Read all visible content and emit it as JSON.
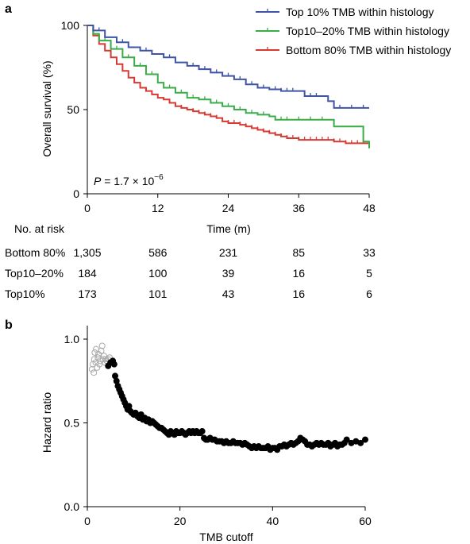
{
  "panels": {
    "a": "a",
    "b": "b"
  },
  "chart_data": [
    {
      "type": "line",
      "subtype": "kaplan-meier",
      "panel": "a",
      "xlabel": "Time (m)",
      "ylabel": "Overall survival (%)",
      "xlim": [
        0,
        48
      ],
      "ylim": [
        0,
        100
      ],
      "xticks": [
        0,
        12,
        24,
        36,
        48
      ],
      "yticks": [
        0,
        50,
        100
      ],
      "xtick_labels": [
        "0",
        "12",
        "24",
        "36",
        "48"
      ],
      "ytick_labels": [
        "0",
        "50",
        "100"
      ],
      "legend_position": "top-right",
      "grid": false,
      "annotation": {
        "p_label": "P",
        "p_value": " = 1.7 × 10",
        "p_exponent": "−6"
      },
      "series": [
        {
          "name": "Top 10% TMB within histology",
          "color": "#3f54a5",
          "steps": [
            [
              0,
              100
            ],
            [
              1,
              97
            ],
            [
              3,
              93
            ],
            [
              5,
              90
            ],
            [
              7,
              87
            ],
            [
              9,
              85
            ],
            [
              11,
              83
            ],
            [
              13,
              81
            ],
            [
              15,
              78
            ],
            [
              17,
              76
            ],
            [
              19,
              74
            ],
            [
              21,
              72
            ],
            [
              23,
              70
            ],
            [
              25,
              68
            ],
            [
              27,
              65
            ],
            [
              29,
              63
            ],
            [
              31,
              62
            ],
            [
              33,
              61
            ],
            [
              36,
              61
            ],
            [
              37,
              58
            ],
            [
              40,
              58
            ],
            [
              41,
              55
            ],
            [
              42,
              51
            ],
            [
              48,
              51
            ]
          ],
          "censor": [
            2,
            6,
            10,
            14,
            18,
            20,
            22,
            24,
            26,
            28,
            30,
            32,
            33,
            34,
            35,
            37,
            38,
            39,
            43,
            45,
            47
          ]
        },
        {
          "name": "Top10–20% TMB within histology",
          "color": "#3aac48",
          "steps": [
            [
              0,
              100
            ],
            [
              1,
              95
            ],
            [
              2,
              91
            ],
            [
              4,
              86
            ],
            [
              6,
              81
            ],
            [
              8,
              76
            ],
            [
              10,
              71
            ],
            [
              12,
              66
            ],
            [
              13,
              63
            ],
            [
              15,
              60
            ],
            [
              17,
              57
            ],
            [
              19,
              56
            ],
            [
              21,
              54
            ],
            [
              23,
              52
            ],
            [
              25,
              50
            ],
            [
              27,
              48
            ],
            [
              29,
              47
            ],
            [
              31,
              46
            ],
            [
              32,
              44
            ],
            [
              36,
              44
            ],
            [
              39,
              44
            ],
            [
              42,
              40
            ],
            [
              45,
              40
            ],
            [
              47,
              31
            ],
            [
              48,
              27
            ]
          ],
          "censor": [
            3,
            5,
            7,
            9,
            11,
            14,
            16,
            18,
            20,
            22,
            24,
            26,
            28,
            30,
            33,
            34,
            36,
            38,
            40
          ]
        },
        {
          "name": "Bottom 80% TMB within histology",
          "color": "#d63a32",
          "steps": [
            [
              0,
              100
            ],
            [
              1,
              94
            ],
            [
              2,
              89
            ],
            [
              3,
              85
            ],
            [
              4,
              81
            ],
            [
              5,
              77
            ],
            [
              6,
              73
            ],
            [
              7,
              69
            ],
            [
              8,
              66
            ],
            [
              9,
              63
            ],
            [
              10,
              61
            ],
            [
              11,
              59
            ],
            [
              12,
              57
            ],
            [
              13,
              56
            ],
            [
              14,
              54
            ],
            [
              15,
              52
            ],
            [
              16,
              51
            ],
            [
              17,
              50
            ],
            [
              18,
              49
            ],
            [
              19,
              48
            ],
            [
              20,
              47
            ],
            [
              21,
              46
            ],
            [
              22,
              45
            ],
            [
              23,
              43
            ],
            [
              24,
              42
            ],
            [
              25,
              42
            ],
            [
              26,
              41
            ],
            [
              27,
              40
            ],
            [
              28,
              39
            ],
            [
              29,
              38
            ],
            [
              30,
              37
            ],
            [
              31,
              36
            ],
            [
              32,
              35
            ],
            [
              33,
              34
            ],
            [
              34,
              33
            ],
            [
              35,
              33
            ],
            [
              36,
              32
            ],
            [
              38,
              32
            ],
            [
              40,
              32
            ],
            [
              42,
              31
            ],
            [
              44,
              30
            ],
            [
              46,
              30
            ],
            [
              47,
              30
            ],
            [
              48,
              28
            ]
          ],
          "censor": [
            5,
            8,
            10,
            12,
            14,
            16,
            18,
            19,
            20,
            21,
            22,
            24,
            25,
            26,
            27,
            28,
            29,
            30,
            31,
            32,
            33,
            34,
            35,
            36,
            37,
            38,
            39,
            40,
            41,
            42,
            43,
            44,
            45,
            46,
            47,
            48
          ]
        }
      ],
      "risk_table": {
        "title": "No. at risk",
        "times": [
          0,
          12,
          24,
          36,
          48
        ],
        "rows": [
          {
            "label": "Bottom 80%",
            "values": [
              "1,305",
              "586",
              "231",
              "85",
              "33"
            ]
          },
          {
            "label": "Top10–20%",
            "values": [
              "184",
              "100",
              "39",
              "16",
              "5"
            ]
          },
          {
            "label": "Top10%",
            "values": [
              "173",
              "101",
              "43",
              "16",
              "6"
            ]
          }
        ]
      }
    },
    {
      "type": "scatter",
      "panel": "b",
      "xlabel": "TMB cutoff",
      "ylabel": "Hazard ratio",
      "xlim": [
        0,
        60
      ],
      "ylim": [
        0,
        1.0
      ],
      "xticks": [
        0,
        20,
        40,
        60
      ],
      "yticks": [
        0.0,
        0.5,
        1.0
      ],
      "xtick_labels": [
        "0",
        "20",
        "40",
        "60"
      ],
      "ytick_labels": [
        "0.0",
        "0.5",
        "1.0"
      ],
      "grid": false,
      "series": [
        {
          "style": "open",
          "color": "#aaaaaa",
          "points": [
            [
              1.0,
              0.82
            ],
            [
              1.2,
              0.85
            ],
            [
              1.4,
              0.8
            ],
            [
              1.5,
              0.88
            ],
            [
              1.6,
              0.92
            ],
            [
              1.8,
              0.86
            ],
            [
              1.9,
              0.94
            ],
            [
              2.1,
              0.83
            ],
            [
              2.3,
              0.89
            ],
            [
              2.4,
              0.91
            ],
            [
              2.6,
              0.85
            ],
            [
              2.8,
              0.87
            ],
            [
              3.0,
              0.93
            ],
            [
              3.2,
              0.96
            ],
            [
              3.4,
              0.88
            ],
            [
              3.6,
              0.9
            ],
            [
              3.8,
              0.86
            ],
            [
              4.0,
              0.88
            ],
            [
              4.2,
              0.87
            ],
            [
              4.5,
              0.88
            ],
            [
              4.8,
              0.89
            ]
          ]
        },
        {
          "style": "filled",
          "color": "#000000",
          "points": [
            [
              4.5,
              0.84
            ],
            [
              5.0,
              0.86
            ],
            [
              5.5,
              0.87
            ],
            [
              5.8,
              0.85
            ],
            [
              6.0,
              0.78
            ],
            [
              6.3,
              0.75
            ],
            [
              6.6,
              0.72
            ],
            [
              6.9,
              0.7
            ],
            [
              7.2,
              0.68
            ],
            [
              7.5,
              0.66
            ],
            [
              7.8,
              0.64
            ],
            [
              8.1,
              0.62
            ],
            [
              8.4,
              0.6
            ],
            [
              8.7,
              0.58
            ],
            [
              9.0,
              0.6
            ],
            [
              9.3,
              0.57
            ],
            [
              9.6,
              0.56
            ],
            [
              10.0,
              0.55
            ],
            [
              10.4,
              0.56
            ],
            [
              10.8,
              0.54
            ],
            [
              11.2,
              0.53
            ],
            [
              11.6,
              0.55
            ],
            [
              12.0,
              0.52
            ],
            [
              12.4,
              0.53
            ],
            [
              12.8,
              0.51
            ],
            [
              13.2,
              0.52
            ],
            [
              13.6,
              0.5
            ],
            [
              14.0,
              0.51
            ],
            [
              14.4,
              0.5
            ],
            [
              14.8,
              0.49
            ],
            [
              15.2,
              0.48
            ],
            [
              15.6,
              0.47
            ],
            [
              16.0,
              0.47
            ],
            [
              16.4,
              0.46
            ],
            [
              16.8,
              0.45
            ],
            [
              17.2,
              0.44
            ],
            [
              17.6,
              0.43
            ],
            [
              18.0,
              0.45
            ],
            [
              18.4,
              0.44
            ],
            [
              18.8,
              0.43
            ],
            [
              19.2,
              0.45
            ],
            [
              19.6,
              0.44
            ],
            [
              20.0,
              0.44
            ],
            [
              20.4,
              0.45
            ],
            [
              20.8,
              0.44
            ],
            [
              21.2,
              0.43
            ],
            [
              21.6,
              0.44
            ],
            [
              22.0,
              0.45
            ],
            [
              22.4,
              0.44
            ],
            [
              22.8,
              0.45
            ],
            [
              23.2,
              0.44
            ],
            [
              23.6,
              0.45
            ],
            [
              24.0,
              0.44
            ],
            [
              24.4,
              0.44
            ],
            [
              24.8,
              0.45
            ],
            [
              25.2,
              0.41
            ],
            [
              25.6,
              0.4
            ],
            [
              26.0,
              0.4
            ],
            [
              26.5,
              0.41
            ],
            [
              27.0,
              0.4
            ],
            [
              27.5,
              0.4
            ],
            [
              28.0,
              0.39
            ],
            [
              28.5,
              0.39
            ],
            [
              29.0,
              0.39
            ],
            [
              29.5,
              0.38
            ],
            [
              30.0,
              0.39
            ],
            [
              30.5,
              0.38
            ],
            [
              31.0,
              0.38
            ],
            [
              31.5,
              0.39
            ],
            [
              32.0,
              0.38
            ],
            [
              32.5,
              0.38
            ],
            [
              33.0,
              0.38
            ],
            [
              33.5,
              0.37
            ],
            [
              34.0,
              0.38
            ],
            [
              34.5,
              0.37
            ],
            [
              35.0,
              0.36
            ],
            [
              35.5,
              0.35
            ],
            [
              36.0,
              0.36
            ],
            [
              36.5,
              0.35
            ],
            [
              37.0,
              0.36
            ],
            [
              37.5,
              0.35
            ],
            [
              38.0,
              0.35
            ],
            [
              38.5,
              0.35
            ],
            [
              39.0,
              0.36
            ],
            [
              39.5,
              0.34
            ],
            [
              40.0,
              0.35
            ],
            [
              40.5,
              0.35
            ],
            [
              41.0,
              0.34
            ],
            [
              41.5,
              0.36
            ],
            [
              42.0,
              0.36
            ],
            [
              42.5,
              0.37
            ],
            [
              43.0,
              0.36
            ],
            [
              43.5,
              0.37
            ],
            [
              44.0,
              0.38
            ],
            [
              44.5,
              0.37
            ],
            [
              45.0,
              0.38
            ],
            [
              45.5,
              0.39
            ],
            [
              46.0,
              0.41
            ],
            [
              46.5,
              0.4
            ],
            [
              47.0,
              0.39
            ],
            [
              47.5,
              0.37
            ],
            [
              48.0,
              0.37
            ],
            [
              48.5,
              0.36
            ],
            [
              49.0,
              0.37
            ],
            [
              49.5,
              0.38
            ],
            [
              50.0,
              0.37
            ],
            [
              50.5,
              0.38
            ],
            [
              51.0,
              0.37
            ],
            [
              51.5,
              0.37
            ],
            [
              52.0,
              0.38
            ],
            [
              52.5,
              0.36
            ],
            [
              53.0,
              0.37
            ],
            [
              53.5,
              0.38
            ],
            [
              54.0,
              0.36
            ],
            [
              54.5,
              0.37
            ],
            [
              55.0,
              0.37
            ],
            [
              55.5,
              0.38
            ],
            [
              56.0,
              0.4
            ],
            [
              57.0,
              0.38
            ],
            [
              58.0,
              0.39
            ],
            [
              59.0,
              0.38
            ],
            [
              60.0,
              0.4
            ]
          ]
        }
      ]
    }
  ]
}
